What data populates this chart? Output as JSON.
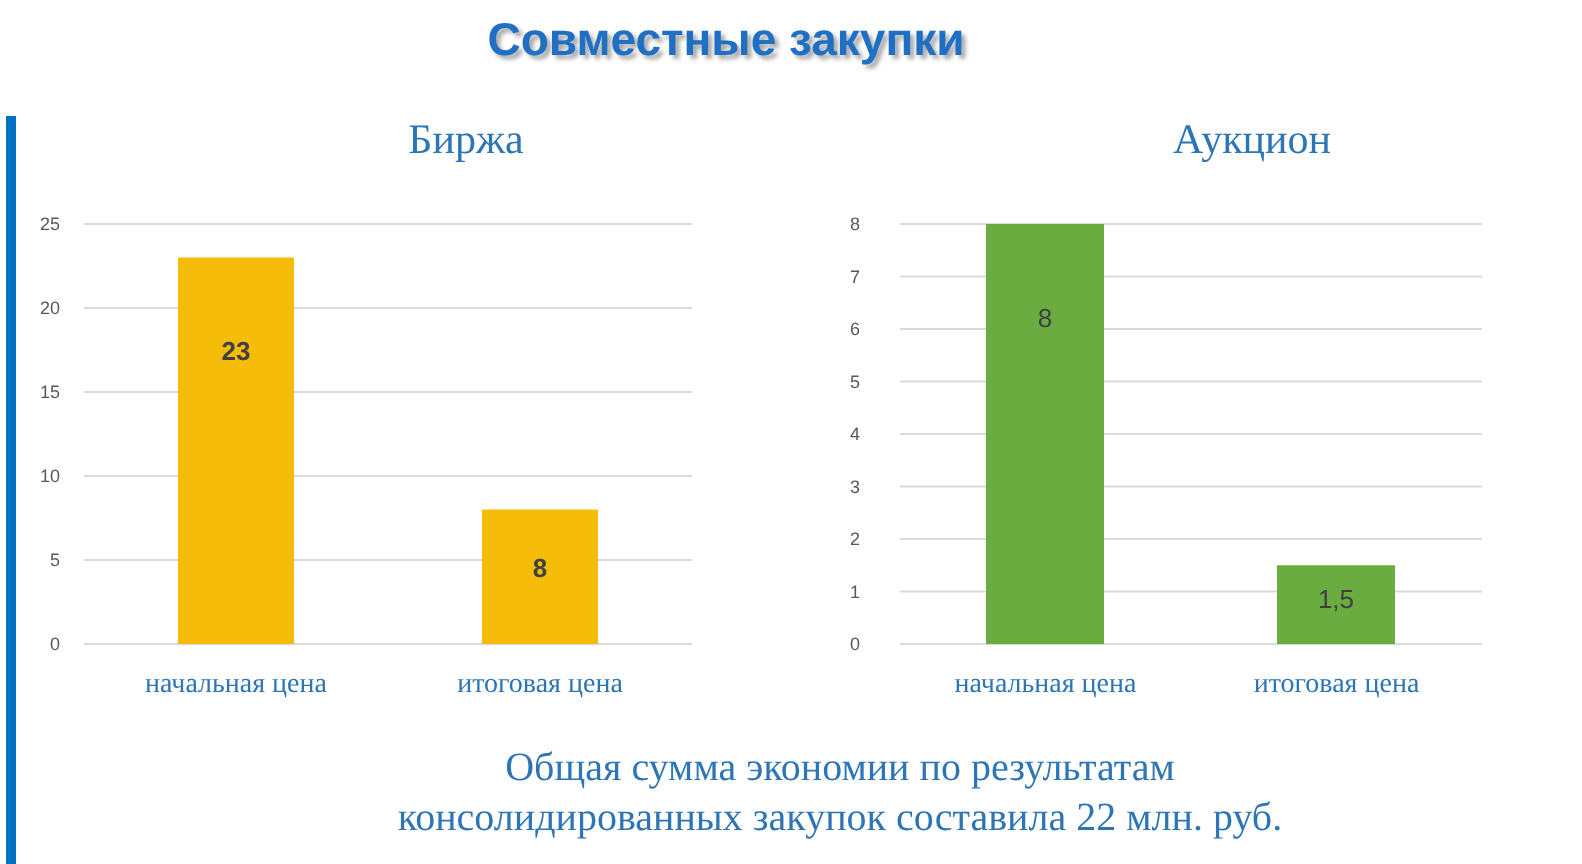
{
  "chart_data": [
    {
      "type": "other",
      "title": "Совместные закупки"
    },
    {
      "type": "bar",
      "title": "Биржа",
      "categories": [
        "начальная цена",
        "итоговая цена"
      ],
      "values": [
        23,
        8
      ],
      "color": "#f5bd0a",
      "ylim": [
        0,
        25
      ],
      "yticks": [
        0,
        5,
        10,
        15,
        20,
        25
      ],
      "grid": "y",
      "data_labels": true
    },
    {
      "type": "bar",
      "title": "Аукцион",
      "categories": [
        "начальная цена",
        "итоговая цена"
      ],
      "values": [
        8,
        1.5
      ],
      "color": "#6aac40",
      "ylim": [
        0,
        8
      ],
      "yticks": [
        0,
        1,
        2,
        3,
        4,
        5,
        6,
        7,
        8
      ],
      "grid": "y",
      "value_labels": [
        "8",
        "1,5"
      ]
    },
    {
      "type": "other",
      "annotations": [
        "Общая сумма экономии по результатам консолидированных закупок составила 22 млн. руб."
      ]
    }
  ]
}
